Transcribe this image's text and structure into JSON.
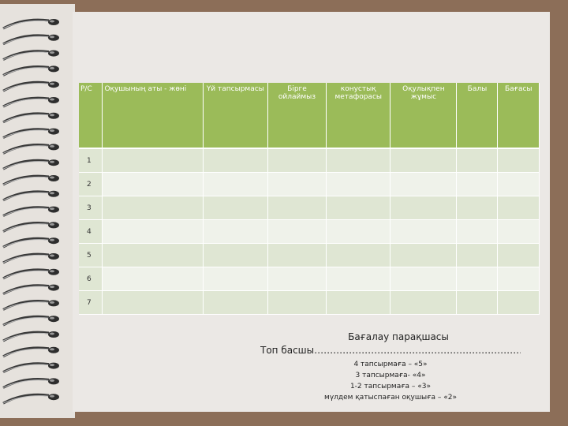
{
  "table": {
    "headers": [
      "Р/С",
      "Оқушының аты - жөні",
      "Үй тапсырмасы",
      "Бірге ойлаймыз",
      "конустық метафорасы",
      "Оқулықпен жұмыс",
      "Балы",
      "Бағасы"
    ],
    "rows": [
      "1",
      "2",
      "3",
      "4",
      "5",
      "6",
      "7"
    ]
  },
  "footer": {
    "title": "Бағалау парақшасы",
    "leader": "Топ басшы……………………………………………………………",
    "criteria": [
      "4 тапсырмаға – «5»",
      "3 тапсырмаға- «4»",
      "1-2 тапсырмаға – «3»",
      "мүлдем қатыспаған оқушыға – «2»"
    ]
  }
}
